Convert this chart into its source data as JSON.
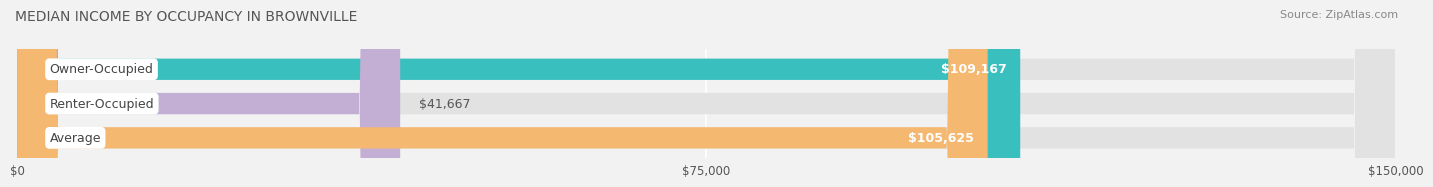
{
  "title": "MEDIAN INCOME BY OCCUPANCY IN BROWNVILLE",
  "source": "Source: ZipAtlas.com",
  "categories": [
    "Owner-Occupied",
    "Renter-Occupied",
    "Average"
  ],
  "values": [
    109167,
    41667,
    105625
  ],
  "bar_colors": [
    "#38bfbe",
    "#c4afd4",
    "#f5b870"
  ],
  "bar_labels": [
    "$109,167",
    "$41,667",
    "$105,625"
  ],
  "label_inside": [
    true,
    false,
    true
  ],
  "xlim": [
    0,
    150000
  ],
  "xtick_values": [
    0,
    75000,
    150000
  ],
  "xtick_labels": [
    "$0",
    "$75,000",
    "$150,000"
  ],
  "bg_color": "#f2f2f2",
  "bar_bg_color": "#e2e2e2",
  "title_fontsize": 10,
  "source_fontsize": 8,
  "label_fontsize": 9,
  "category_fontsize": 9
}
